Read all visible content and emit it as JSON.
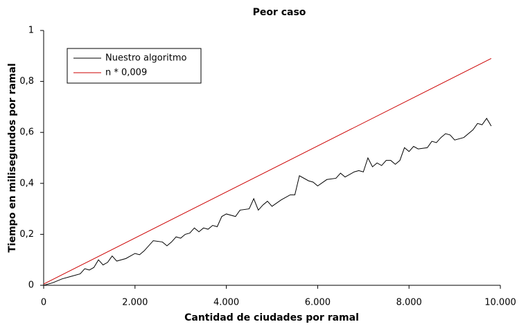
{
  "chart_data": {
    "type": "line",
    "title": "Peor caso",
    "x_label": "Cantidad de ciudades por ramal",
    "y_label": "Tiempo en milisegundos por ramal",
    "xlim": [
      0,
      10000
    ],
    "xticks": [
      0,
      {
        "value": 2000,
        "label": "2.000"
      },
      {
        "value": 4000,
        "label": "4.000"
      },
      {
        "value": 6000,
        "label": "6.000"
      },
      {
        "value": 8000,
        "label": "8.000"
      },
      {
        "value": 10000,
        "label": "10.000"
      }
    ],
    "ylim": [
      0,
      1
    ],
    "yticks": [
      0,
      {
        "value": 0.2,
        "label": "0,2"
      },
      {
        "value": 0.4,
        "label": "0,4"
      },
      {
        "value": 0.6,
        "label": "0,6"
      },
      {
        "value": 0.8,
        "label": "0,8"
      },
      1
    ],
    "legend_position": "upper-left",
    "series": [
      {
        "name": "Nuestro algoritmo",
        "color": "#000000",
        "x": [
          0,
          200,
          400,
          600,
          800,
          900,
          1000,
          1100,
          1200,
          1300,
          1400,
          1500,
          1600,
          1800,
          2000,
          2100,
          2200,
          2400,
          2600,
          2700,
          2800,
          2900,
          3000,
          3100,
          3200,
          3300,
          3400,
          3500,
          3600,
          3700,
          3800,
          3900,
          4000,
          4200,
          4300,
          4500,
          4600,
          4700,
          4800,
          4900,
          5000,
          5200,
          5400,
          5500,
          5600,
          5800,
          5900,
          6000,
          6200,
          6400,
          6500,
          6600,
          6800,
          6900,
          7000,
          7100,
          7200,
          7300,
          7400,
          7500,
          7600,
          7700,
          7800,
          7900,
          8000,
          8100,
          8200,
          8400,
          8500,
          8600,
          8700,
          8800,
          8900,
          9000,
          9200,
          9400,
          9500,
          9600,
          9700,
          9800
        ],
        "values": [
          0,
          0.01,
          0.025,
          0.035,
          0.045,
          0.065,
          0.06,
          0.07,
          0.1,
          0.08,
          0.09,
          0.115,
          0.095,
          0.105,
          0.125,
          0.12,
          0.135,
          0.175,
          0.17,
          0.155,
          0.17,
          0.19,
          0.185,
          0.2,
          0.205,
          0.225,
          0.21,
          0.225,
          0.22,
          0.235,
          0.23,
          0.27,
          0.28,
          0.27,
          0.295,
          0.3,
          0.34,
          0.295,
          0.315,
          0.33,
          0.31,
          0.335,
          0.355,
          0.355,
          0.43,
          0.41,
          0.405,
          0.39,
          0.415,
          0.42,
          0.44,
          0.425,
          0.445,
          0.45,
          0.445,
          0.5,
          0.465,
          0.48,
          0.47,
          0.49,
          0.49,
          0.475,
          0.49,
          0.54,
          0.525,
          0.545,
          0.535,
          0.54,
          0.565,
          0.56,
          0.58,
          0.595,
          0.59,
          0.57,
          0.58,
          0.61,
          0.635,
          0.63,
          0.655,
          0.625
        ]
      },
      {
        "name": "n * 0,009",
        "color": "#cc0000",
        "x": [
          0,
          9800
        ],
        "values": [
          0.005,
          0.89
        ]
      }
    ]
  }
}
